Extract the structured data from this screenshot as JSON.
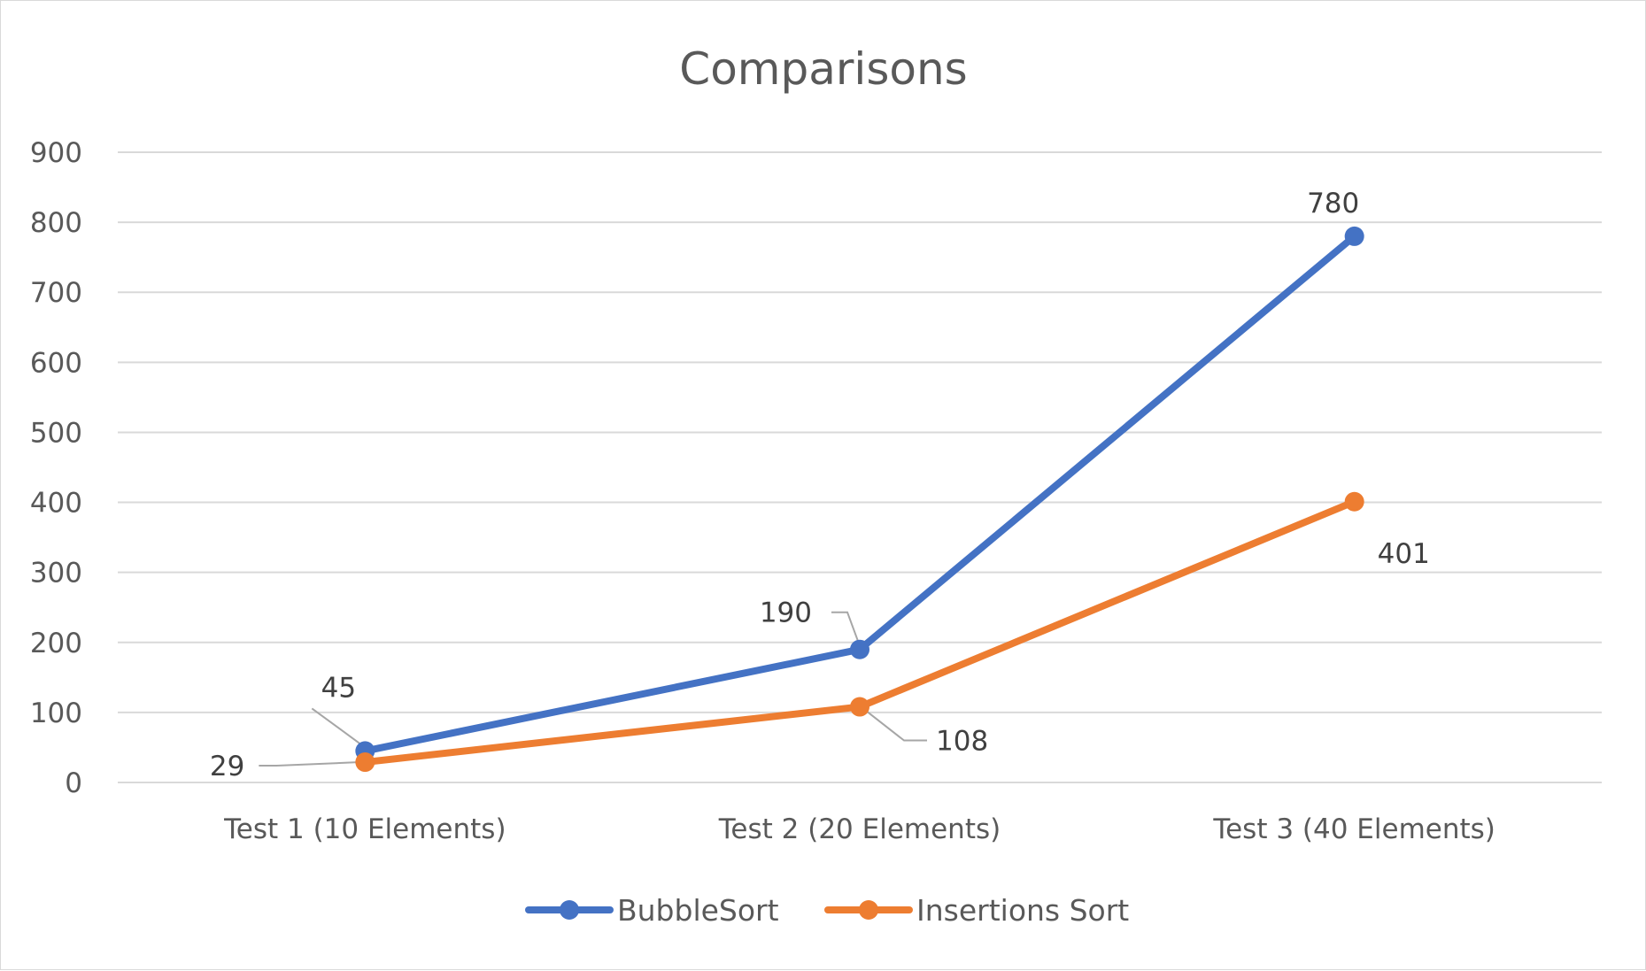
{
  "chart_data": {
    "type": "line",
    "title": "Comparisons",
    "categories": [
      "Test 1 (10 Elements)",
      "Test 2 (20 Elements)",
      "Test 3 (40 Elements)"
    ],
    "series": [
      {
        "name": "BubbleSort",
        "values": [
          45,
          190,
          780
        ],
        "color": "#4472C4"
      },
      {
        "name": "Insertions Sort",
        "values": [
          29,
          108,
          401
        ],
        "color": "#ED7D31"
      }
    ],
    "ylim": [
      0,
      900
    ],
    "yticks": [
      "0",
      "100",
      "200",
      "300",
      "400",
      "500",
      "600",
      "700",
      "800",
      "900"
    ],
    "grid": true,
    "legend_position": "bottom",
    "data_labels": true
  }
}
